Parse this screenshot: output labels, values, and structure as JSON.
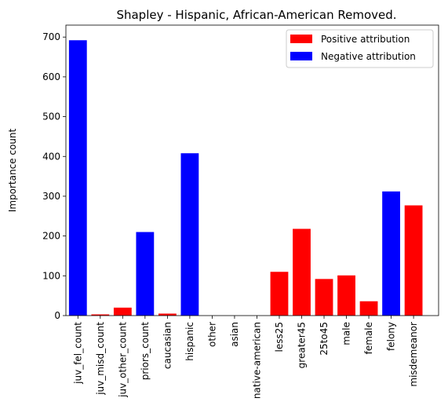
{
  "chart_data": {
    "type": "bar",
    "title": "Shapley - Hispanic, African-American Removed.",
    "xlabel": "",
    "ylabel": "Importance count",
    "ylim": [
      0,
      730
    ],
    "yticks": [
      0,
      100,
      200,
      300,
      400,
      500,
      600,
      700
    ],
    "grid": false,
    "legend_position": "top-right",
    "categories": [
      "juv_fel_count",
      "juv_misd_count",
      "juv_other_count",
      "priors_count",
      "caucasian",
      "hispanic",
      "other",
      "asian",
      "native-american",
      "less25",
      "greater45",
      "25to45",
      "male",
      "female",
      "felony",
      "misdemeanor"
    ],
    "values": [
      692,
      3,
      20,
      210,
      5,
      408,
      0,
      0,
      0,
      110,
      218,
      92,
      101,
      36,
      312,
      277
    ],
    "attribution": [
      "Negative",
      "Positive",
      "Positive",
      "Negative",
      "Positive",
      "Negative",
      "Positive",
      "Positive",
      "Positive",
      "Positive",
      "Positive",
      "Positive",
      "Positive",
      "Positive",
      "Negative",
      "Positive"
    ],
    "legend": [
      {
        "key": "Positive",
        "label": "Positive attribution",
        "color": "#ff0000"
      },
      {
        "key": "Negative",
        "label": "Negative attribution",
        "color": "#0000ff"
      }
    ]
  }
}
